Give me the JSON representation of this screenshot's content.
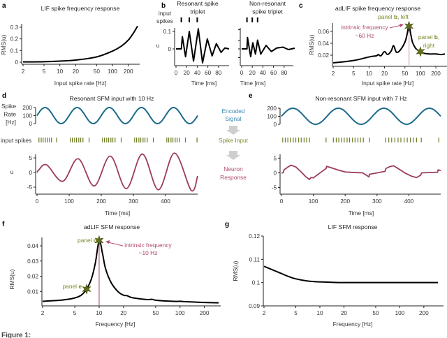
{
  "colors": {
    "signal": "#1b6a8c",
    "spikes": "#6b7a1f",
    "response": "#9c3b60",
    "annotation_pink": "#b04a72",
    "annotation_olive": "#7a8a2a",
    "intrinsic_line": "#e8b9c8",
    "star": "#5f6d1c",
    "arrow_gray": "#cfcfcf"
  },
  "pipeline": {
    "encoded_lines": [
      "Encoded",
      "Signal"
    ],
    "spike_input": "Spike Input",
    "response_lines": [
      "Neuron",
      "Response"
    ]
  },
  "caption": "Figure 1:",
  "chart_data": [
    {
      "id": "a",
      "panel_label": "a",
      "type": "line",
      "title_lines": [
        "LIF spike frequency response"
      ],
      "xlabel": "Input spike rate [Hz]",
      "ylabel": "RMS(u)",
      "xscale": "log",
      "xlim": [
        2,
        300
      ],
      "ylim": [
        0,
        0.3
      ],
      "xticks": [
        2,
        5,
        10,
        20,
        50,
        100,
        200
      ],
      "yticks": [
        0,
        0.1,
        0.2,
        0.3
      ],
      "x": [
        2,
        5,
        10,
        20,
        50,
        100,
        150,
        200,
        250,
        300
      ],
      "y": [
        0.002,
        0.004,
        0.009,
        0.018,
        0.045,
        0.095,
        0.14,
        0.19,
        0.25,
        0.31
      ]
    },
    {
      "id": "b-left",
      "panel_label": "b",
      "type": "line",
      "title_lines": [
        "Resonant spike",
        "triplet"
      ],
      "spike_label_lines": [
        "input",
        "spikes"
      ],
      "xlabel": "Time [ms]",
      "ylabel": "u",
      "xlim": [
        0,
        100
      ],
      "ylim": [
        -0.09,
        0.12
      ],
      "xticks": [
        0,
        20,
        40,
        60,
        80
      ],
      "yticks": [
        0,
        0.1
      ],
      "input_spikes": [
        10,
        25,
        40
      ],
      "x": [
        0,
        10,
        12,
        18,
        25,
        33,
        42,
        50,
        59,
        68,
        76,
        85,
        92,
        100
      ],
      "y": [
        0,
        0,
        0.07,
        -0.045,
        0.1,
        -0.07,
        0.115,
        -0.08,
        0.057,
        -0.04,
        0.03,
        -0.02,
        0.005,
        0.0
      ]
    },
    {
      "id": "b-right",
      "type": "line",
      "title_lines": [
        "Non-resonant",
        "spike triplet"
      ],
      "xlabel": "Time [ms]",
      "xlim": [
        0,
        100
      ],
      "ylim": [
        -0.09,
        0.12
      ],
      "xticks": [
        0,
        20,
        40,
        60,
        80
      ],
      "yticks": [
        -0.05,
        0,
        0.05,
        0.11
      ],
      "ytick_labels_shown": false,
      "input_spikes": [
        10,
        20,
        30
      ],
      "x": [
        0,
        10,
        11,
        17,
        21,
        26,
        30,
        36,
        46,
        56,
        66,
        78,
        88,
        100
      ],
      "y": [
        0,
        0,
        0.065,
        -0.045,
        0.035,
        -0.03,
        0.05,
        -0.03,
        0.02,
        -0.015,
        0.005,
        0.01,
        -0.004,
        0.004
      ]
    },
    {
      "id": "c",
      "panel_label": "c",
      "type": "line",
      "title_lines": [
        "adLIF spike frequency response"
      ],
      "xlabel": "Input spike rate [Hz]",
      "ylabel": "RMS(u)",
      "xscale": "log",
      "xlim": [
        2,
        300
      ],
      "ylim": [
        0,
        0.07
      ],
      "xticks": [
        2,
        5,
        10,
        20,
        50,
        100,
        200
      ],
      "yticks": [
        0.02,
        0.04,
        0.06
      ],
      "x": [
        2,
        5,
        10,
        14,
        15,
        17,
        20,
        23,
        27,
        30,
        34,
        40,
        50,
        55,
        60,
        65,
        70,
        80,
        90,
        100,
        120,
        150,
        200,
        250,
        300
      ],
      "y": [
        0.007,
        0.011,
        0.017,
        0.019,
        0.021,
        0.019,
        0.026,
        0.021,
        0.027,
        0.036,
        0.025,
        0.028,
        0.042,
        0.055,
        0.069,
        0.055,
        0.042,
        0.032,
        0.028,
        0.026,
        0.023,
        0.022,
        0.022,
        0.021,
        0.022
      ],
      "intrinsic_frequency": 60,
      "annotations": {
        "intrinsic_lines": [
          "intrinsic frequency",
          "~60 Hz"
        ],
        "panel_b_left": {
          "prefix": "panel ",
          "bold": "b",
          "suffix": ", left",
          "x": 60,
          "y": 0.069
        },
        "panel_b_right": {
          "prefix": "panel ",
          "bold": "b",
          "suffix": ",",
          "line2": "right",
          "x": 100,
          "y": 0.026
        }
      }
    },
    {
      "id": "d",
      "panel_label": "d",
      "type": "line",
      "title_lines": [
        "Resonant SFM input with 10 Hz"
      ],
      "signal_ylabel_lines": [
        "Spike",
        "Rate",
        "[Hz]"
      ],
      "spike_row_label": "input spikes",
      "xlabel": "Time [ms]",
      "ylabel": "u",
      "xlim": [
        0,
        500
      ],
      "signal_ylim": [
        0,
        200
      ],
      "ylim": [
        -7,
        7
      ],
      "xticks": [
        0,
        100,
        200,
        300,
        400
      ],
      "signal_yticks": [
        0,
        100,
        200
      ],
      "yticks": [
        -5,
        0,
        5
      ],
      "signal": {
        "frequency_hz": 10,
        "offset": 100,
        "amplitude": 100
      },
      "input_spikes": [
        6,
        13,
        19,
        26,
        32,
        39,
        45,
        61,
        104,
        110,
        117,
        123,
        130,
        136,
        143,
        162,
        204,
        210,
        217,
        223,
        230,
        236,
        243,
        262,
        304,
        310,
        317,
        323,
        330,
        336,
        343,
        362,
        404,
        410,
        417,
        423,
        430,
        436,
        443,
        462,
        498
      ],
      "response_x": [
        0,
        5,
        30,
        80,
        128,
        178,
        228,
        278,
        328,
        378,
        428,
        480,
        500
      ],
      "response_y": [
        0,
        0.8,
        2.6,
        -3.0,
        4.7,
        -4.6,
        5.6,
        -5.5,
        6.3,
        -5.9,
        6.6,
        -6.1,
        -1.2
      ]
    },
    {
      "id": "e",
      "panel_label": "e",
      "type": "line",
      "title_lines": [
        "Non-resonant SFM input with 7 Hz"
      ],
      "xlabel": "Time [ms]",
      "xlim": [
        0,
        500
      ],
      "signal_ylim": [
        0,
        200
      ],
      "ylim": [
        -7,
        7
      ],
      "xticks": [
        0,
        100,
        200,
        300,
        400
      ],
      "signal_yticks": [
        0,
        100,
        200
      ],
      "yticks": [
        -5,
        0,
        5
      ],
      "signal": {
        "frequency_hz": 7,
        "offset": 100,
        "amplitude": 100
      },
      "input_spikes": [
        4,
        12,
        20,
        28,
        37,
        45,
        54,
        62,
        71,
        79,
        88,
        140,
        163,
        172,
        180,
        189,
        197,
        206,
        214,
        223,
        231,
        240,
        248,
        257,
        276,
        327,
        337,
        346,
        356,
        366,
        375,
        385,
        395,
        405,
        414,
        424,
        439,
        494
      ],
      "response_x": [
        0,
        5,
        8,
        18,
        30,
        45,
        60,
        75,
        88,
        92,
        100,
        140,
        142,
        160,
        180,
        200,
        230,
        255,
        275,
        276,
        325,
        328,
        340,
        352,
        370,
        390,
        410,
        424,
        437,
        440,
        490,
        492,
        500
      ],
      "response_y": [
        0,
        0,
        1.0,
        1.8,
        2.6,
        2.0,
        0.5,
        -1.2,
        -2.3,
        -1.6,
        -1.7,
        1.5,
        2.2,
        1.6,
        0.9,
        0.3,
        0.1,
        0.0,
        -1.4,
        -0.5,
        0.5,
        1.5,
        2.1,
        2.4,
        1.2,
        -0.2,
        -1.2,
        -1.6,
        -0.8,
        0.0,
        0.2,
        1.0,
        0.8
      ]
    },
    {
      "id": "f",
      "panel_label": "f",
      "type": "line",
      "title_lines": [
        "adLIF SFM response"
      ],
      "xlabel": "Frequency [Hz]",
      "ylabel": "RMS(u)",
      "xscale": "log",
      "xlim": [
        2,
        300
      ],
      "ylim": [
        0,
        0.046
      ],
      "xticks": [
        2,
        5,
        10,
        20,
        50,
        100,
        200
      ],
      "yticks": [
        0.01,
        0.02,
        0.03,
        0.04
      ],
      "x": [
        2,
        3,
        4,
        5,
        6,
        7,
        8,
        9,
        10,
        11,
        12,
        14,
        17,
        20,
        22,
        25,
        30,
        40,
        45,
        50,
        70,
        90,
        100,
        110,
        150,
        200,
        300
      ],
      "y": [
        0.0035,
        0.004,
        0.0047,
        0.0057,
        0.0075,
        0.0115,
        0.018,
        0.029,
        0.0435,
        0.035,
        0.025,
        0.016,
        0.01,
        0.0075,
        0.0072,
        0.006,
        0.0053,
        0.0046,
        0.0048,
        0.0042,
        0.0036,
        0.0034,
        0.0035,
        0.0033,
        0.003,
        0.0027,
        0.0025
      ],
      "intrinsic_frequency": 10,
      "annotations": {
        "intrinsic_lines": [
          "intrinsic frequency",
          "~10 Hz"
        ],
        "panel_d": {
          "prefix": "panel ",
          "bold": "d",
          "x": 10,
          "y": 0.0435
        },
        "panel_e": {
          "prefix": "panel ",
          "bold": "e",
          "x": 7,
          "y": 0.0115
        }
      }
    },
    {
      "id": "g",
      "panel_label": "g",
      "type": "line",
      "title_lines": [
        "LIF SFM response"
      ],
      "xlabel": "Frequency [Hz]",
      "ylabel": "RMS(u)",
      "xscale": "log",
      "xlim": [
        2,
        300
      ],
      "ylim": [
        0.09,
        0.12
      ],
      "xticks": [
        2,
        5,
        10,
        20,
        50,
        100,
        200
      ],
      "yticks": [
        0.09,
        0.1,
        0.11,
        0.12
      ],
      "x": [
        2,
        3,
        4,
        5,
        7,
        10,
        15,
        20,
        50,
        100,
        300
      ],
      "y": [
        0.107,
        0.1045,
        0.1027,
        0.1016,
        0.1007,
        0.1003,
        0.1001,
        0.1,
        0.1,
        0.1,
        0.1
      ]
    }
  ]
}
